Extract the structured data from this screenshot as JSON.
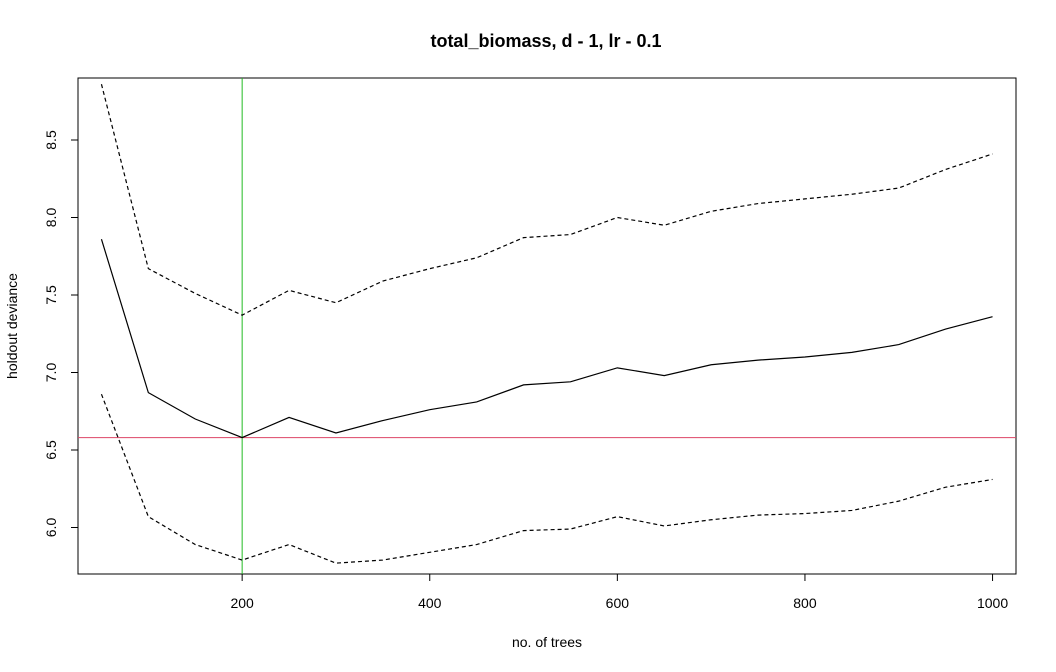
{
  "chart_data": {
    "type": "line",
    "title": "total_biomass, d - 1, lr - 0.1",
    "xlabel": "no. of trees",
    "ylabel": "holdout deviance",
    "xlim": [
      25,
      1025
    ],
    "ylim": [
      5.7,
      8.9
    ],
    "x_ticks": [
      200,
      400,
      600,
      800,
      1000
    ],
    "y_ticks": [
      6.0,
      6.5,
      7.0,
      7.5,
      8.0,
      8.5
    ],
    "x_tick_labels": [
      "200",
      "400",
      "600",
      "800",
      "1000"
    ],
    "y_tick_labels": [
      "6.0",
      "6.5",
      "7.0",
      "7.5",
      "8.0",
      "8.5"
    ],
    "x": [
      50,
      100,
      150,
      200,
      250,
      300,
      350,
      400,
      450,
      500,
      550,
      600,
      650,
      700,
      750,
      800,
      850,
      900,
      950,
      1000
    ],
    "series": [
      {
        "style": "solid",
        "color": "#000000",
        "values": [
          7.86,
          6.87,
          6.7,
          6.58,
          6.71,
          6.61,
          6.69,
          6.76,
          6.81,
          6.92,
          6.94,
          7.03,
          6.98,
          7.05,
          7.08,
          7.1,
          7.13,
          7.18,
          7.28,
          7.36
        ]
      },
      {
        "style": "dashed",
        "color": "#000000",
        "values": [
          8.86,
          7.67,
          7.51,
          7.37,
          7.53,
          7.45,
          7.59,
          7.67,
          7.74,
          7.87,
          7.89,
          8.0,
          7.95,
          8.04,
          8.09,
          8.12,
          8.15,
          8.19,
          8.31,
          8.41
        ]
      },
      {
        "style": "dashed",
        "color": "#000000",
        "values": [
          6.86,
          6.07,
          5.89,
          5.79,
          5.89,
          5.77,
          5.79,
          5.84,
          5.89,
          5.98,
          5.99,
          6.07,
          6.01,
          6.05,
          6.08,
          6.09,
          6.11,
          6.17,
          6.26,
          6.31
        ]
      }
    ],
    "reference_lines": [
      {
        "orientation": "vertical",
        "value": 200,
        "color": "#22bb22"
      },
      {
        "orientation": "horizontal",
        "value": 6.58,
        "color": "#dd4466"
      }
    ],
    "grid": false,
    "legend": "none"
  }
}
